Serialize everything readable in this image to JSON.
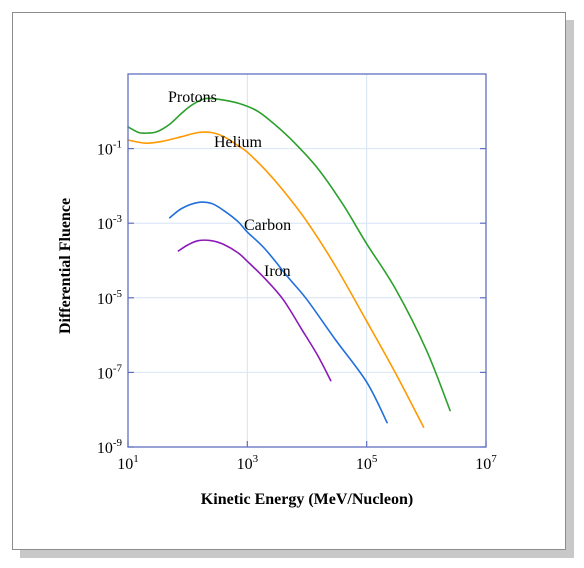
{
  "chart_data": {
    "type": "line",
    "title": "",
    "xlabel": "Kinetic Energy (MeV/Nucleon)",
    "ylabel": "Differential Fluence",
    "x_scale": "log",
    "y_scale": "log",
    "xlim": [
      10,
      10000000
    ],
    "ylim": [
      1e-09,
      10
    ],
    "grid": true,
    "x_ticks": [
      {
        "base": "10",
        "exp": "1"
      },
      {
        "base": "10",
        "exp": "3"
      },
      {
        "base": "10",
        "exp": "5"
      },
      {
        "base": "10",
        "exp": "7"
      }
    ],
    "y_ticks": [
      {
        "base": "10",
        "exp": "-1"
      },
      {
        "base": "10",
        "exp": "-3"
      },
      {
        "base": "10",
        "exp": "-5"
      },
      {
        "base": "10",
        "exp": "-7"
      },
      {
        "base": "10",
        "exp": "-9"
      }
    ],
    "series": [
      {
        "name": "Protons",
        "color": "#2ca02c",
        "x": [
          10,
          15,
          20,
          30,
          50,
          80,
          120,
          200,
          400,
          800,
          1500,
          3000,
          6000,
          15000,
          40000,
          100000,
          300000,
          1000000,
          2500000
        ],
        "y": [
          0.38,
          0.27,
          0.26,
          0.28,
          0.45,
          0.9,
          1.5,
          2.2,
          2.0,
          1.55,
          1.0,
          0.42,
          0.15,
          0.03,
          0.0032,
          0.00028,
          1.8e-05,
          4e-07,
          9.5e-09
        ]
      },
      {
        "name": "Helium",
        "color": "#ff9900",
        "x": [
          10,
          20,
          40,
          80,
          150,
          250,
          400,
          700,
          1000,
          2000,
          4000,
          10000,
          30000,
          100000,
          300000,
          900000
        ],
        "y": [
          0.17,
          0.14,
          0.16,
          0.21,
          0.27,
          0.27,
          0.21,
          0.12,
          0.08,
          0.027,
          0.0075,
          0.0011,
          7.06e-05,
          2.36e-06,
          1e-07,
          3.4e-09
        ]
      },
      {
        "name": "Carbon",
        "color": "#1f6fdc",
        "x": [
          50,
          80,
          150,
          250,
          400,
          700,
          1000,
          2000,
          5000,
          10000,
          30000,
          100000,
          220000
        ],
        "y": [
          0.0014,
          0.0025,
          0.0036,
          0.0034,
          0.0022,
          0.0011,
          0.00058,
          0.0002,
          3.31e-05,
          8.9e-06,
          7.5e-07,
          5.5e-08,
          4.5e-09
        ]
      },
      {
        "name": "Iron",
        "color": "#8b1ab8",
        "x": [
          70,
          100,
          150,
          250,
          400,
          700,
          1000,
          2000,
          4000,
          8000,
          15000,
          25000
        ],
        "y": [
          0.00018,
          0.00026,
          0.00034,
          0.00034,
          0.00027,
          0.00016,
          9.53e-05,
          3.2e-05,
          8.9e-06,
          1.5e-06,
          2.9e-07,
          6e-08
        ]
      }
    ]
  }
}
